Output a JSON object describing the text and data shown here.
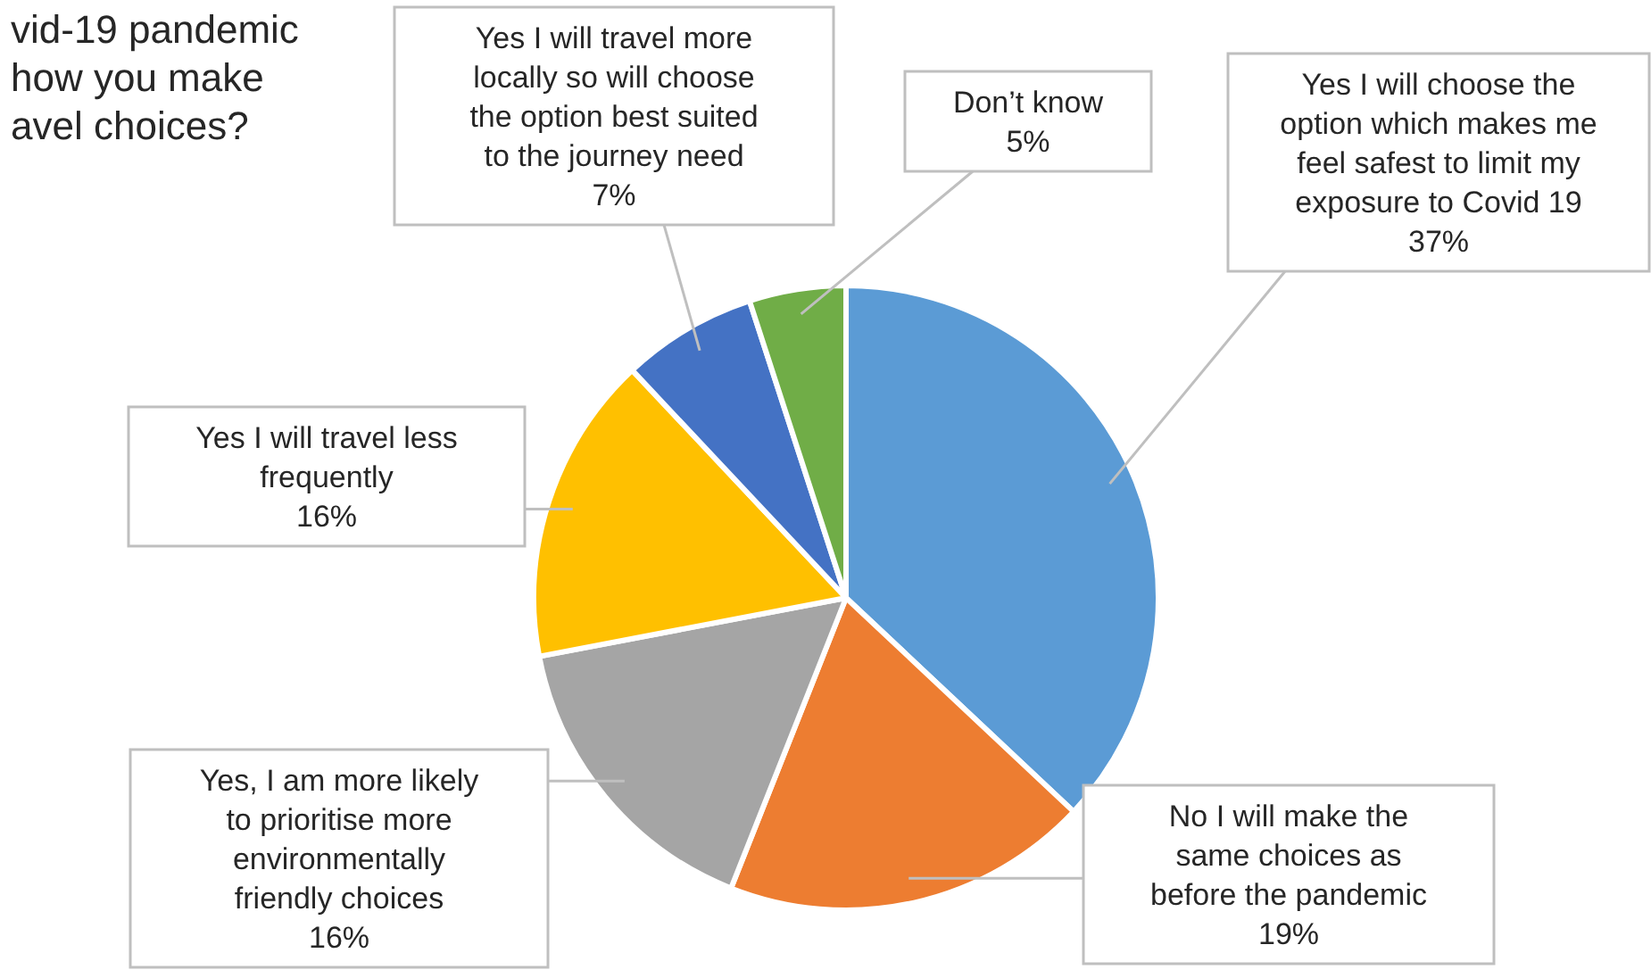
{
  "chart_data": {
    "type": "pie",
    "title": "vid-19 pandemic\nhow you make\navel choices?",
    "categories": [
      "Yes I will choose the option which makes me feel safest to limit my exposure to Covid 19",
      "No I will make the same choices as before the pandemic",
      "Yes, I am more likely to prioritise more environmentally friendly choices",
      "Yes I will travel less frequently",
      "Yes I will travel more locally so will choose the option best suited to the journey need",
      "Don’t know"
    ],
    "values": [
      37,
      19,
      16,
      16,
      7,
      5
    ],
    "colors": [
      "#5b9bd5",
      "#ed7d31",
      "#a5a5a5",
      "#ffc000",
      "#4472c4",
      "#70ad47"
    ],
    "value_labels": [
      "37%",
      "19%",
      "16%",
      "16%",
      "7%",
      "5%"
    ]
  }
}
